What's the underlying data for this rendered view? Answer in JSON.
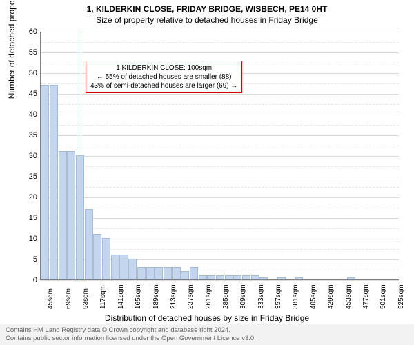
{
  "chart": {
    "type": "histogram",
    "title_line1": "1, KILDERKIN CLOSE, FRIDAY BRIDGE, WISBECH, PE14 0HT",
    "title_line2": "Size of property relative to detached houses in Friday Bridge",
    "title_fontsize": 12,
    "background_color": "#ffffff",
    "plot_border_color": "#808080",
    "grid_color": "#dcdcdc",
    "y_axis": {
      "label": "Number of detached properties",
      "min": 0,
      "max": 60,
      "major_step": 5,
      "tick_fontsize": 11,
      "label_fontsize": 12
    },
    "x_axis": {
      "label": "Distribution of detached houses by size in Friday Bridge",
      "ticks": [
        "45sqm",
        "69sqm",
        "93sqm",
        "117sqm",
        "141sqm",
        "165sqm",
        "189sqm",
        "213sqm",
        "237sqm",
        "261sqm",
        "285sqm",
        "309sqm",
        "333sqm",
        "357sqm",
        "381sqm",
        "405sqm",
        "429sqm",
        "453sqm",
        "477sqm",
        "501sqm",
        "525sqm"
      ],
      "tick_step_bars": 2,
      "tick_fontsize": 10,
      "label_fontsize": 12
    },
    "bars": {
      "values": [
        47,
        47,
        31,
        31,
        30,
        17,
        11,
        10,
        6,
        6,
        5,
        3,
        3,
        3,
        3,
        3,
        2,
        3,
        1,
        1,
        1,
        1,
        1,
        1,
        1,
        0.5,
        0,
        0.5,
        0,
        0.5,
        0,
        0,
        0,
        0,
        0,
        0.5,
        0,
        0,
        0,
        0,
        0
      ],
      "fill_color": "#c4d6ed",
      "border_color": "#a9bcd6",
      "bar_width_ratio": 0.95
    },
    "reference_line": {
      "x_bar_index": 4.6,
      "color": "#d40000",
      "width": 1
    },
    "annotation": {
      "lines": [
        "1 KILDERKIN CLOSE: 100sqm",
        "← 55% of detached houses are smaller (88)",
        "43% of semi-detached houses are larger (69) →"
      ],
      "border_color": "#d40000",
      "background_color": "#ffffff",
      "fontsize": 10,
      "x_bar_index": 5.2,
      "y_value": 53
    }
  },
  "footer": {
    "line1": "Contains HM Land Registry data © Crown copyright and database right 2024.",
    "line2": "Contains public sector information licensed under the Open Government Licence v3.0.",
    "background_color": "#f2f2f2",
    "text_color": "#666666",
    "fontsize": 9.5
  }
}
